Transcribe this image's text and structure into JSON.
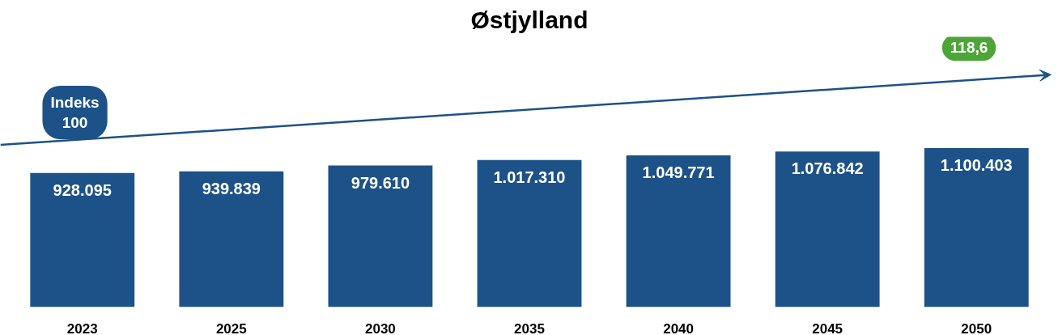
{
  "chart_data": {
    "type": "bar",
    "title": "Østjylland",
    "categories": [
      "2023",
      "2025",
      "2030",
      "2035",
      "2040",
      "2045",
      "2050"
    ],
    "values": [
      928095,
      939839,
      979610,
      1017310,
      1049771,
      1076842,
      1100403
    ],
    "value_labels": [
      "928.095",
      "939.839",
      "979.610",
      "1.017.310",
      "1.049.771",
      "1.076.842",
      "1.100.403"
    ],
    "color": "#1d5288",
    "tick_labels": "x",
    "grid": false,
    "annotations": [
      "Indeks\n100",
      "118,6"
    ]
  }
}
